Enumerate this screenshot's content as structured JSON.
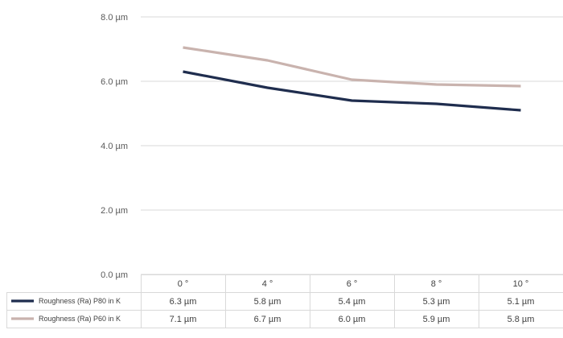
{
  "chart_data": {
    "type": "line",
    "categories": [
      "0 °",
      "4 °",
      "6 °",
      "8 °",
      "10 °"
    ],
    "series": [
      {
        "name": "Roughness (Ra) P80 in K",
        "color": "#1f2d4e",
        "values": [
          6.3,
          5.8,
          5.4,
          5.3,
          5.1
        ],
        "labels": [
          "6.3 µm",
          "5.8 µm",
          "5.4 µm",
          "5.3 µm",
          "5.1 µm"
        ]
      },
      {
        "name": "Roughness (Ra) P60 in K",
        "color": "#c9b3ae",
        "values": [
          7.05,
          6.65,
          6.05,
          5.9,
          5.85
        ],
        "labels": [
          "7.1 µm",
          "6.7 µm",
          "6.0 µm",
          "5.9 µm",
          "5.8 µm"
        ]
      }
    ],
    "yticks": [
      {
        "value": 0,
        "label": "0.0 µm"
      },
      {
        "value": 2,
        "label": "2.0 µm"
      },
      {
        "value": 4,
        "label": "4.0 µm"
      },
      {
        "value": 6,
        "label": "6.0 µm"
      },
      {
        "value": 8,
        "label": "8.0 µm"
      }
    ],
    "ylim": [
      0,
      8
    ],
    "grid": true,
    "legend": "data-table-bottom",
    "xlabel": "",
    "ylabel": ""
  }
}
